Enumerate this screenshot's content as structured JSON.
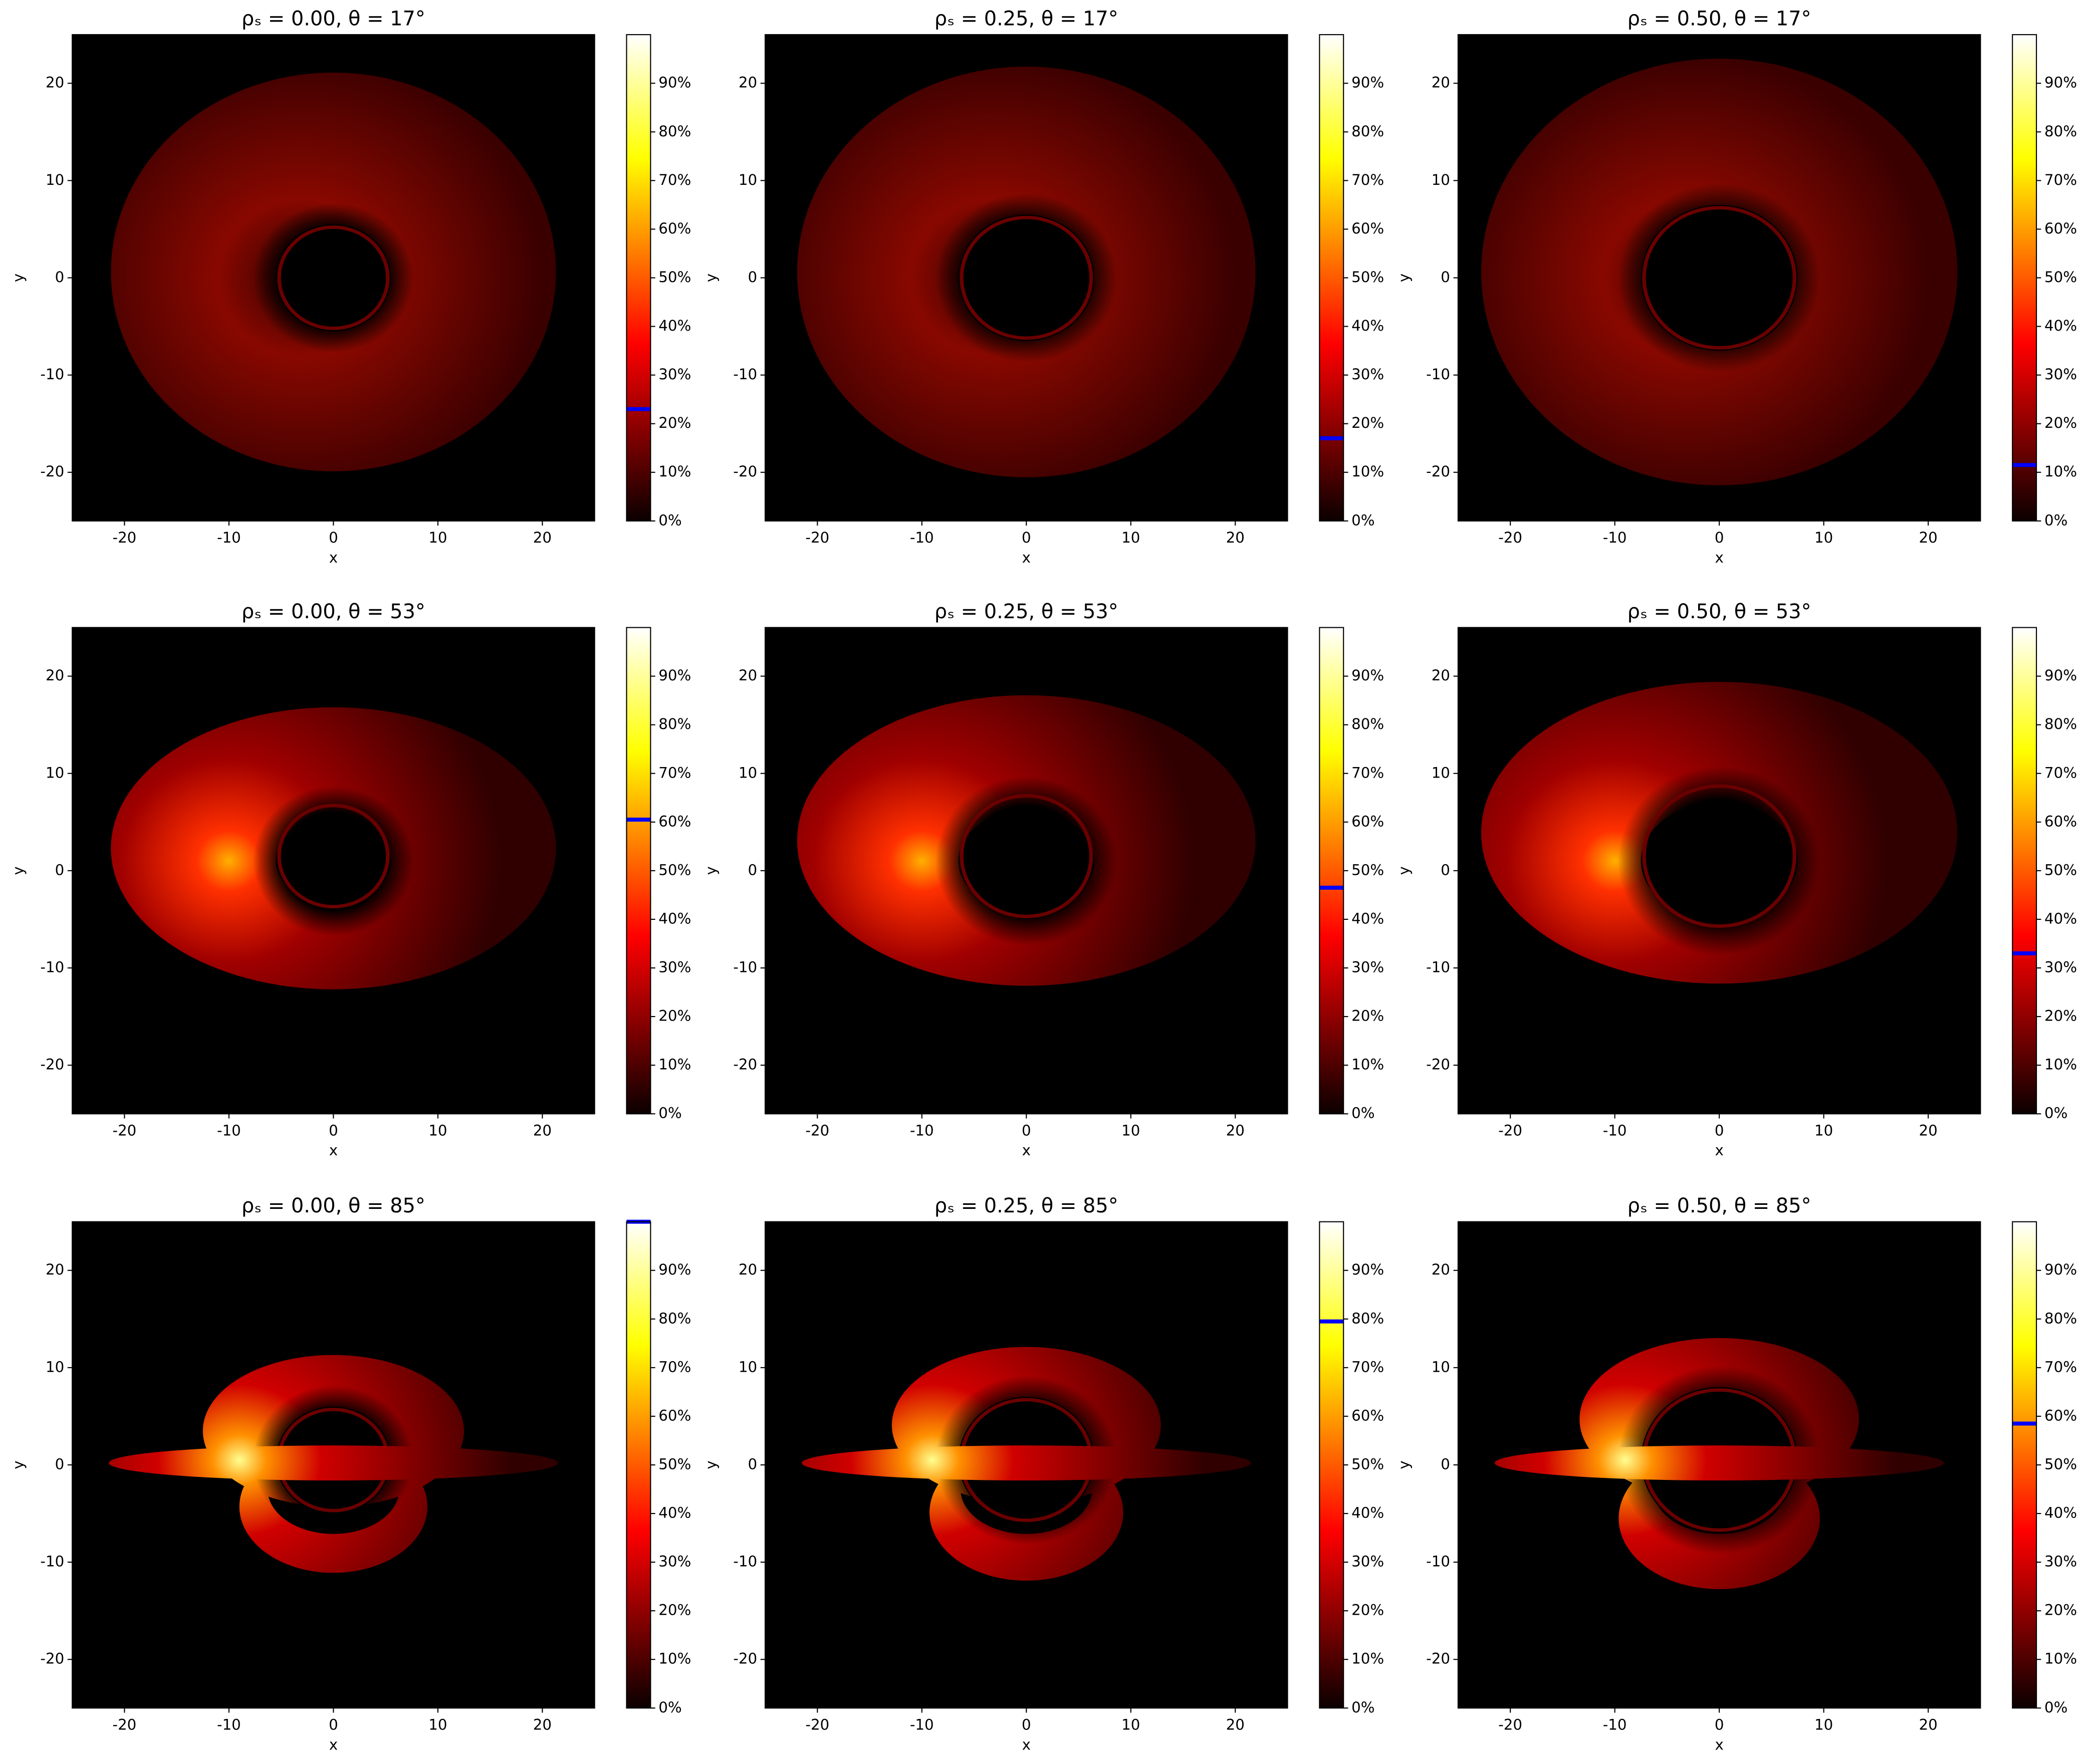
{
  "chart_data": [
    {
      "type": "image",
      "title": "ρₛ = 0.00,  θ = 17°",
      "xlabel": "x",
      "ylabel": "y",
      "xlim": [
        -25,
        25
      ],
      "ylim": [
        -25,
        25
      ],
      "xticks": [
        -20,
        -10,
        0,
        10,
        20
      ],
      "yticks": [
        -20,
        -10,
        0,
        10,
        20
      ],
      "colorbar": {
        "clim": [
          0,
          100
        ],
        "ticks": [
          {
            "value": 0,
            "label": "0%"
          },
          {
            "value": 10,
            "label": "10%"
          },
          {
            "value": 20,
            "label": "20%"
          },
          {
            "value": 30,
            "label": "30%"
          },
          {
            "value": 40,
            "label": "40%"
          },
          {
            "value": 50,
            "label": "50%"
          },
          {
            "value": 60,
            "label": "60%"
          },
          {
            "value": 70,
            "label": "70%"
          },
          {
            "value": 80,
            "label": "80%"
          },
          {
            "value": 90,
            "label": "90%"
          }
        ],
        "marker": 23,
        "marker_color": "#0000ff"
      }
    },
    {
      "type": "image",
      "title": "ρₛ = 0.25,  θ = 17°",
      "xlabel": "x",
      "ylabel": "y",
      "xlim": [
        -25,
        25
      ],
      "ylim": [
        -25,
        25
      ],
      "xticks": [
        -20,
        -10,
        0,
        10,
        20
      ],
      "yticks": [
        -20,
        -10,
        0,
        10,
        20
      ],
      "colorbar": {
        "clim": [
          0,
          100
        ],
        "ticks": [
          {
            "value": 0,
            "label": "0%"
          },
          {
            "value": 10,
            "label": "10%"
          },
          {
            "value": 20,
            "label": "20%"
          },
          {
            "value": 30,
            "label": "30%"
          },
          {
            "value": 40,
            "label": "40%"
          },
          {
            "value": 50,
            "label": "50%"
          },
          {
            "value": 60,
            "label": "60%"
          },
          {
            "value": 70,
            "label": "70%"
          },
          {
            "value": 80,
            "label": "80%"
          },
          {
            "value": 90,
            "label": "90%"
          }
        ],
        "marker": 17,
        "marker_color": "#0000ff"
      }
    },
    {
      "type": "image",
      "title": "ρₛ = 0.50,  θ = 17°",
      "xlabel": "x",
      "ylabel": "y",
      "xlim": [
        -25,
        25
      ],
      "ylim": [
        -25,
        25
      ],
      "xticks": [
        -20,
        -10,
        0,
        10,
        20
      ],
      "yticks": [
        -20,
        -10,
        0,
        10,
        20
      ],
      "colorbar": {
        "clim": [
          0,
          100
        ],
        "ticks": [
          {
            "value": 0,
            "label": "0%"
          },
          {
            "value": 10,
            "label": "10%"
          },
          {
            "value": 20,
            "label": "20%"
          },
          {
            "value": 30,
            "label": "30%"
          },
          {
            "value": 40,
            "label": "40%"
          },
          {
            "value": 50,
            "label": "50%"
          },
          {
            "value": 60,
            "label": "60%"
          },
          {
            "value": 70,
            "label": "70%"
          },
          {
            "value": 80,
            "label": "80%"
          },
          {
            "value": 90,
            "label": "90%"
          }
        ],
        "marker": 11.5,
        "marker_color": "#0000ff"
      }
    },
    {
      "type": "image",
      "title": "ρₛ = 0.00,  θ = 53°",
      "xlabel": "x",
      "ylabel": "y",
      "xlim": [
        -25,
        25
      ],
      "ylim": [
        -25,
        25
      ],
      "xticks": [
        -20,
        -10,
        0,
        10,
        20
      ],
      "yticks": [
        -20,
        -10,
        0,
        10,
        20
      ],
      "colorbar": {
        "clim": [
          0,
          100
        ],
        "ticks": [
          {
            "value": 0,
            "label": "0%"
          },
          {
            "value": 10,
            "label": "10%"
          },
          {
            "value": 20,
            "label": "20%"
          },
          {
            "value": 30,
            "label": "30%"
          },
          {
            "value": 40,
            "label": "40%"
          },
          {
            "value": 50,
            "label": "50%"
          },
          {
            "value": 60,
            "label": "60%"
          },
          {
            "value": 70,
            "label": "70%"
          },
          {
            "value": 80,
            "label": "80%"
          },
          {
            "value": 90,
            "label": "90%"
          }
        ],
        "marker": 60.5,
        "marker_color": "#0000ff"
      }
    },
    {
      "type": "image",
      "title": "ρₛ = 0.25,  θ = 53°",
      "xlabel": "x",
      "ylabel": "y",
      "xlim": [
        -25,
        25
      ],
      "ylim": [
        -25,
        25
      ],
      "xticks": [
        -20,
        -10,
        0,
        10,
        20
      ],
      "yticks": [
        -20,
        -10,
        0,
        10,
        20
      ],
      "colorbar": {
        "clim": [
          0,
          100
        ],
        "ticks": [
          {
            "value": 0,
            "label": "0%"
          },
          {
            "value": 10,
            "label": "10%"
          },
          {
            "value": 20,
            "label": "20%"
          },
          {
            "value": 30,
            "label": "30%"
          },
          {
            "value": 40,
            "label": "40%"
          },
          {
            "value": 50,
            "label": "50%"
          },
          {
            "value": 60,
            "label": "60%"
          },
          {
            "value": 70,
            "label": "70%"
          },
          {
            "value": 80,
            "label": "80%"
          },
          {
            "value": 90,
            "label": "90%"
          }
        ],
        "marker": 46.5,
        "marker_color": "#0000ff"
      }
    },
    {
      "type": "image",
      "title": "ρₛ = 0.50,  θ = 53°",
      "xlabel": "x",
      "ylabel": "y",
      "xlim": [
        -25,
        25
      ],
      "ylim": [
        -25,
        25
      ],
      "xticks": [
        -20,
        -10,
        0,
        10,
        20
      ],
      "yticks": [
        -20,
        -10,
        0,
        10,
        20
      ],
      "colorbar": {
        "clim": [
          0,
          100
        ],
        "ticks": [
          {
            "value": 0,
            "label": "0%"
          },
          {
            "value": 10,
            "label": "10%"
          },
          {
            "value": 20,
            "label": "20%"
          },
          {
            "value": 30,
            "label": "30%"
          },
          {
            "value": 40,
            "label": "40%"
          },
          {
            "value": 50,
            "label": "50%"
          },
          {
            "value": 60,
            "label": "60%"
          },
          {
            "value": 70,
            "label": "70%"
          },
          {
            "value": 80,
            "label": "80%"
          },
          {
            "value": 90,
            "label": "90%"
          }
        ],
        "marker": 33,
        "marker_color": "#0000ff"
      }
    },
    {
      "type": "image",
      "title": "ρₛ = 0.00,  θ = 85°",
      "xlabel": "x",
      "ylabel": "y",
      "xlim": [
        -25,
        25
      ],
      "ylim": [
        -25,
        25
      ],
      "xticks": [
        -20,
        -10,
        0,
        10,
        20
      ],
      "yticks": [
        -20,
        -10,
        0,
        10,
        20
      ],
      "colorbar": {
        "clim": [
          0,
          100
        ],
        "ticks": [
          {
            "value": 0,
            "label": "0%"
          },
          {
            "value": 10,
            "label": "10%"
          },
          {
            "value": 20,
            "label": "20%"
          },
          {
            "value": 30,
            "label": "30%"
          },
          {
            "value": 40,
            "label": "40%"
          },
          {
            "value": 50,
            "label": "50%"
          },
          {
            "value": 60,
            "label": "60%"
          },
          {
            "value": 70,
            "label": "70%"
          },
          {
            "value": 80,
            "label": "80%"
          },
          {
            "value": 90,
            "label": "90%"
          }
        ],
        "marker": 100,
        "marker_color": "#0000ff"
      }
    },
    {
      "type": "image",
      "title": "ρₛ = 0.25,  θ = 85°",
      "xlabel": "x",
      "ylabel": "y",
      "xlim": [
        -25,
        25
      ],
      "ylim": [
        -25,
        25
      ],
      "xticks": [
        -20,
        -10,
        0,
        10,
        20
      ],
      "yticks": [
        -20,
        -10,
        0,
        10,
        20
      ],
      "colorbar": {
        "clim": [
          0,
          100
        ],
        "ticks": [
          {
            "value": 0,
            "label": "0%"
          },
          {
            "value": 10,
            "label": "10%"
          },
          {
            "value": 20,
            "label": "20%"
          },
          {
            "value": 30,
            "label": "30%"
          },
          {
            "value": 40,
            "label": "40%"
          },
          {
            "value": 50,
            "label": "50%"
          },
          {
            "value": 60,
            "label": "60%"
          },
          {
            "value": 70,
            "label": "70%"
          },
          {
            "value": 80,
            "label": "80%"
          },
          {
            "value": 90,
            "label": "90%"
          }
        ],
        "marker": 79.5,
        "marker_color": "#0000ff"
      }
    },
    {
      "type": "image",
      "title": "ρₛ = 0.50,  θ = 85°",
      "xlabel": "x",
      "ylabel": "y",
      "xlim": [
        -25,
        25
      ],
      "ylim": [
        -25,
        25
      ],
      "xticks": [
        -20,
        -10,
        0,
        10,
        20
      ],
      "yticks": [
        -20,
        -10,
        0,
        10,
        20
      ],
      "colorbar": {
        "clim": [
          0,
          100
        ],
        "ticks": [
          {
            "value": 0,
            "label": "0%"
          },
          {
            "value": 10,
            "label": "10%"
          },
          {
            "value": 20,
            "label": "20%"
          },
          {
            "value": 30,
            "label": "30%"
          },
          {
            "value": 40,
            "label": "40%"
          },
          {
            "value": 50,
            "label": "50%"
          },
          {
            "value": 60,
            "label": "60%"
          },
          {
            "value": 70,
            "label": "70%"
          },
          {
            "value": 80,
            "label": "80%"
          },
          {
            "value": 90,
            "label": "90%"
          }
        ],
        "marker": 58.5,
        "marker_color": "#0000ff"
      }
    }
  ]
}
